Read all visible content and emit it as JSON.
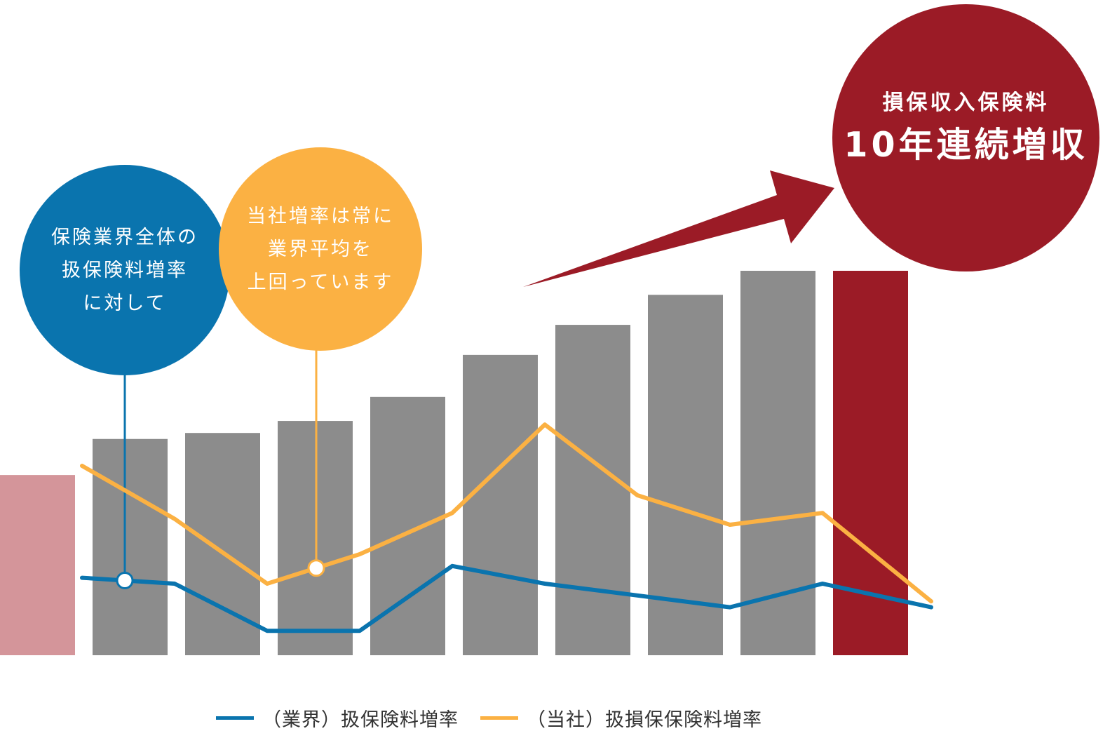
{
  "chart_data": {
    "type": "bar",
    "categories": [
      "",
      "",
      "",
      "",
      "",
      "",
      "",
      "",
      "",
      ""
    ],
    "values": [
      30,
      36,
      37,
      39,
      43,
      50,
      55,
      60,
      64,
      64
    ],
    "ylim": [
      0,
      80
    ],
    "grid": false,
    "legend_position": "bottom",
    "series": [
      {
        "name": "（業界）扱保険料増率",
        "kind": "line",
        "color": "#0a74ae",
        "values": [
          16,
          15,
          7,
          7,
          18,
          15,
          13,
          11,
          15,
          11
        ]
      },
      {
        "name": "（当社）扱損保保険料増率",
        "kind": "line",
        "color": "#fbb143",
        "values": [
          35,
          26,
          15,
          20,
          27,
          42,
          30,
          25,
          27,
          12
        ]
      }
    ],
    "bar_colors": {
      "first": "#d4959a",
      "normal": "#8c8c8c",
      "last": "#9b1b26"
    }
  },
  "callouts": {
    "industry": {
      "lines": [
        "保険業界全体の",
        "扱保険料増率",
        "に対して"
      ],
      "color": "#0a74ae"
    },
    "company": {
      "lines": [
        "当社増率は常に",
        "業界平均を",
        "上回っています"
      ],
      "color": "#fbb143"
    },
    "result": {
      "subtitle": "損保収入保険料",
      "headline": "10年連続増収",
      "color": "#9b1b26"
    }
  },
  "legend": {
    "industry": "（業界）扱保険料増率",
    "company": "（当社）扱損保保険料増率"
  }
}
